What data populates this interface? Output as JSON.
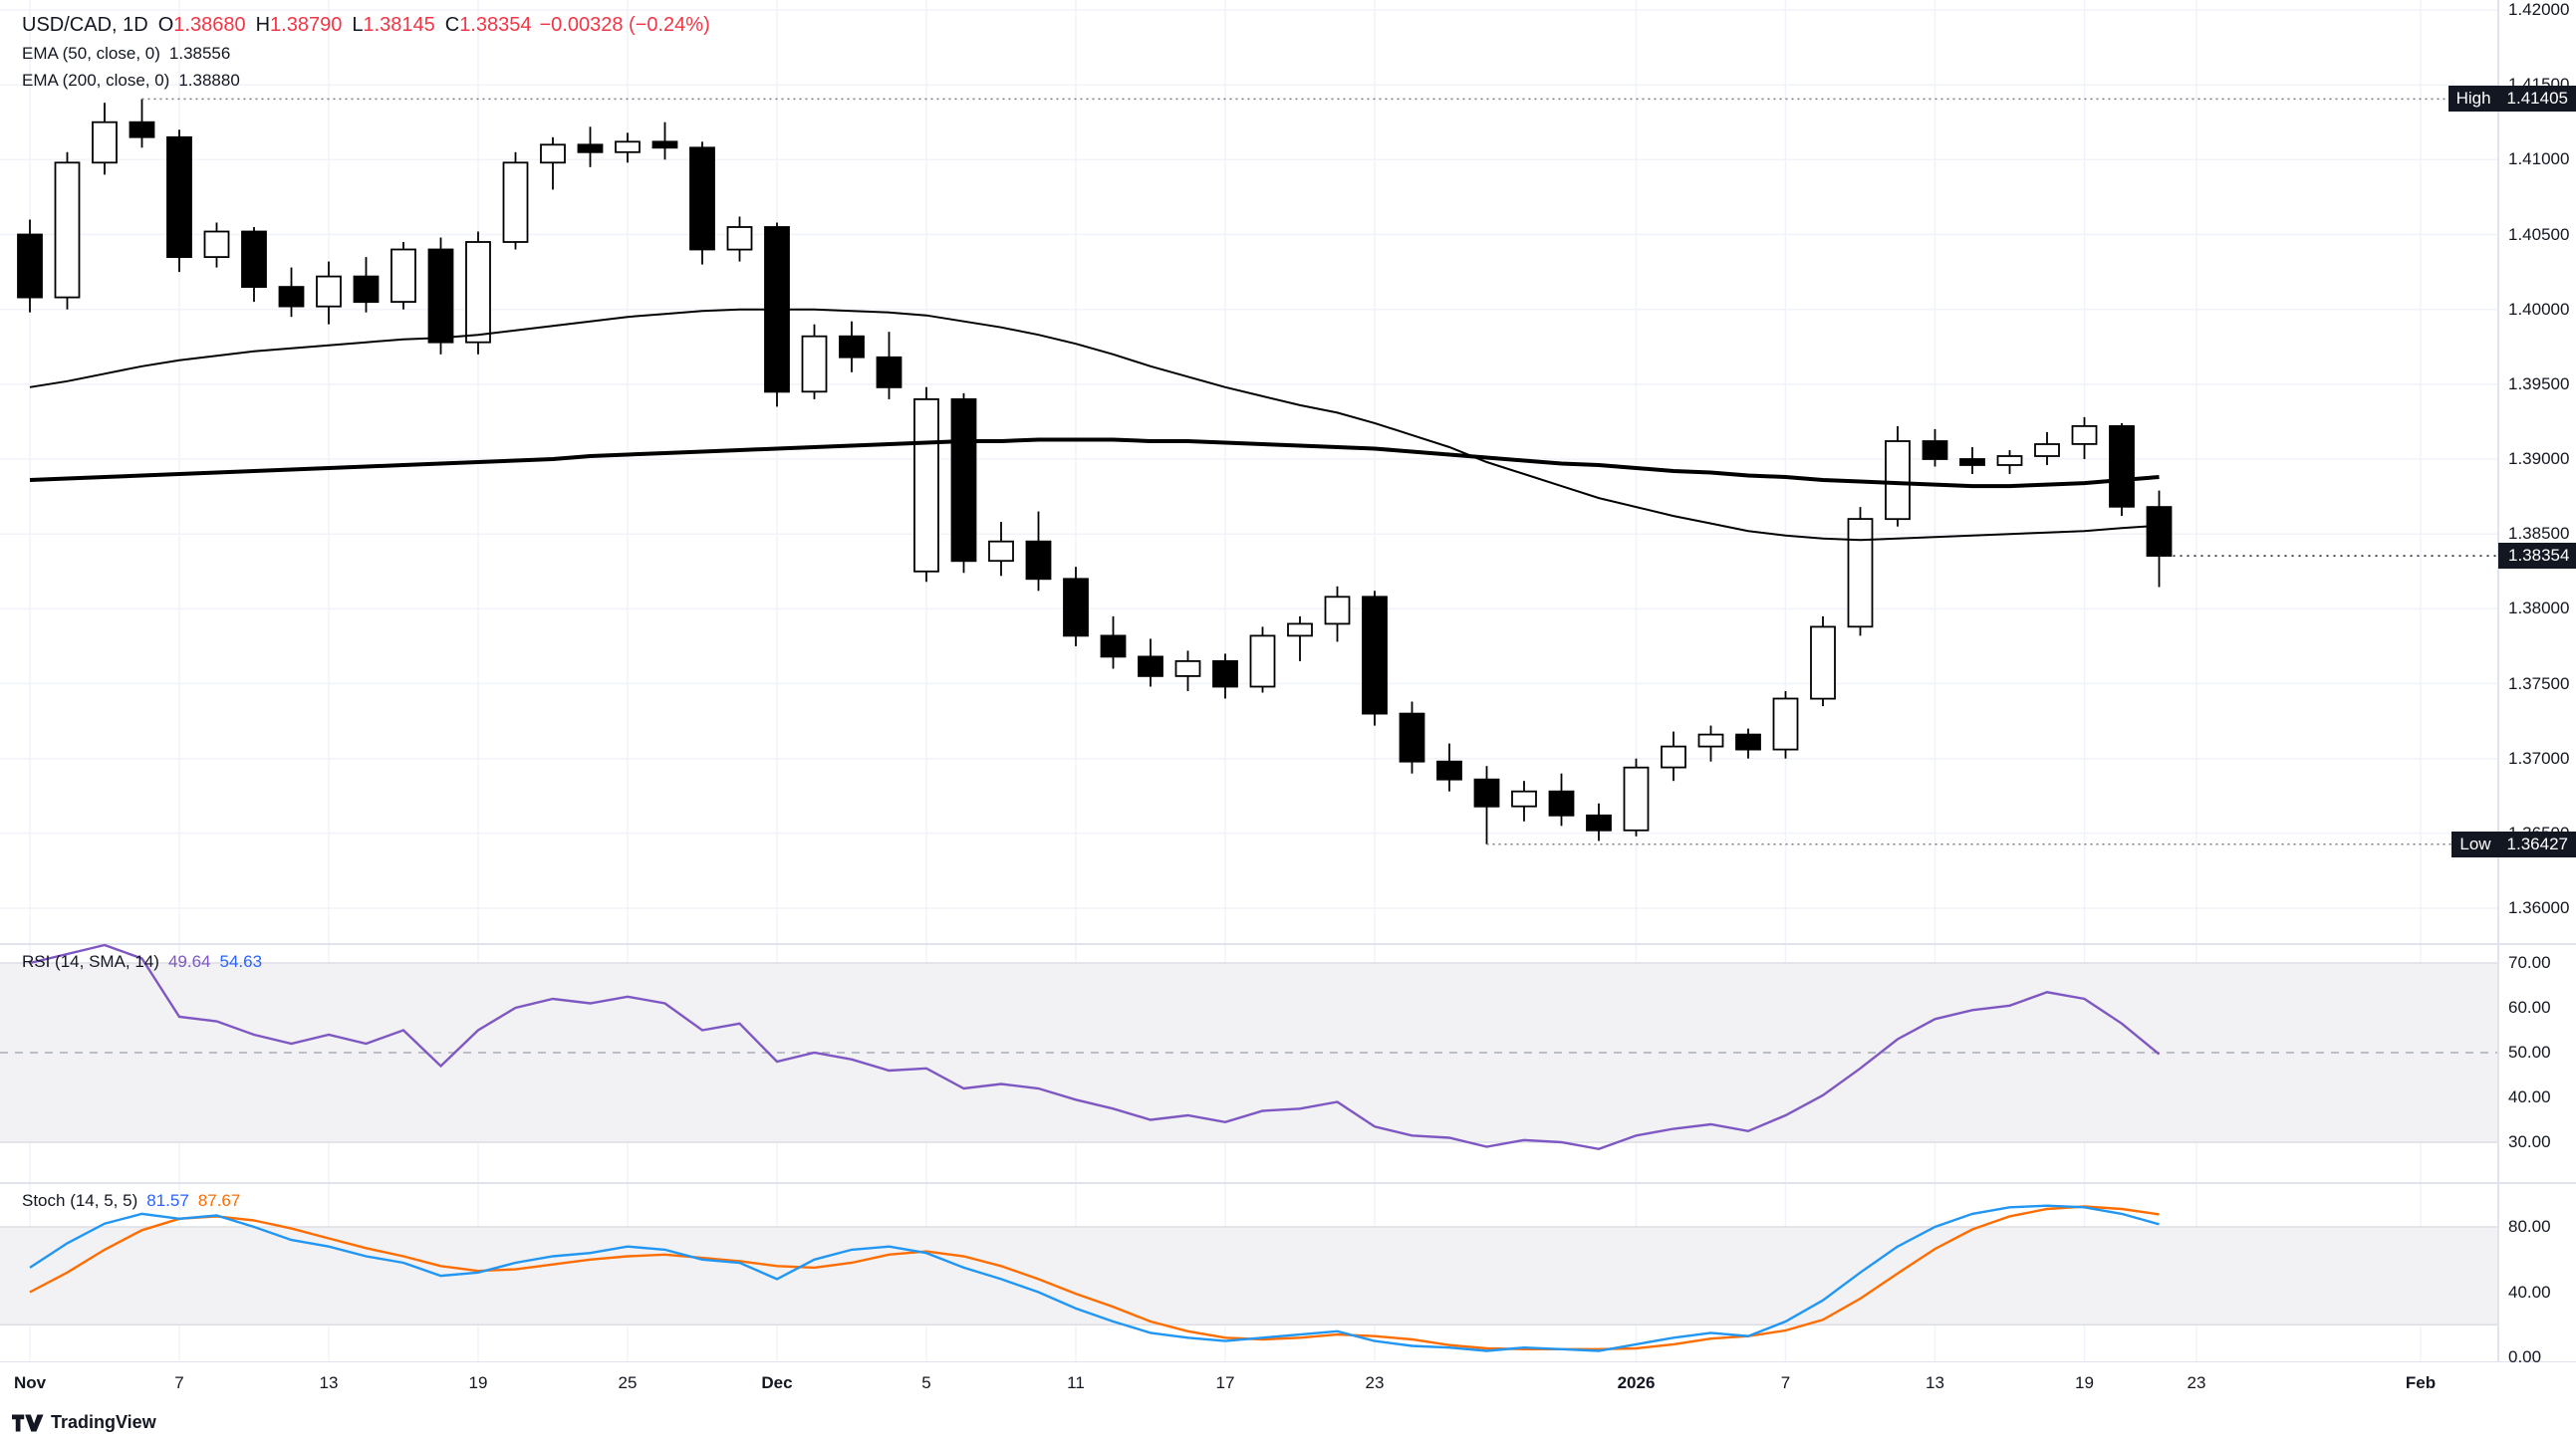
{
  "legend": {
    "symbol": "USD/CAD, 1D",
    "o_label": "O",
    "open": "1.38680",
    "h_label": "H",
    "high": "1.38790",
    "l_label": "L",
    "low": "1.38145",
    "c_label": "C",
    "close": "1.38354",
    "change": "−0.00328 (−0.24%)",
    "ema50_label": "EMA (50, close, 0)",
    "ema50_value": "1.38556",
    "ema200_label": "EMA (200, close, 0)",
    "ema200_value": "1.38880",
    "rsi_label": "RSI (14, SMA, 14)",
    "rsi_value": "49.64",
    "rsi_ma_value": "54.63",
    "stoch_label": "Stoch (14, 5, 5)",
    "stoch_k_value": "81.57",
    "stoch_d_value": "87.67"
  },
  "badges": {
    "high_label": "High",
    "high_value": "1.41405",
    "low_label": "Low",
    "low_value": "1.36427",
    "last_value": "1.38354"
  },
  "axes": {
    "price_ticks": [
      "1.42000",
      "1.41500",
      "1.41000",
      "1.40500",
      "1.40000",
      "1.39500",
      "1.39000",
      "1.38500",
      "1.38000",
      "1.37500",
      "1.37000",
      "1.36500",
      "1.36000"
    ],
    "rsi_ticks": [
      "70.00",
      "60.00",
      "50.00",
      "40.00",
      "30.00"
    ],
    "stoch_ticks": [
      "80.00",
      "40.00",
      "0.00"
    ],
    "time_ticks": [
      {
        "label": "Nov",
        "i": 0,
        "major": true
      },
      {
        "label": "7",
        "i": 4,
        "major": false
      },
      {
        "label": "13",
        "i": 8,
        "major": false
      },
      {
        "label": "19",
        "i": 12,
        "major": false
      },
      {
        "label": "25",
        "i": 16,
        "major": false
      },
      {
        "label": "Dec",
        "i": 20,
        "major": true
      },
      {
        "label": "5",
        "i": 24,
        "major": false
      },
      {
        "label": "11",
        "i": 28,
        "major": false
      },
      {
        "label": "17",
        "i": 32,
        "major": false
      },
      {
        "label": "23",
        "i": 36,
        "major": false
      },
      {
        "label": "2026",
        "i": 43,
        "major": true
      },
      {
        "label": "7",
        "i": 47,
        "major": false
      },
      {
        "label": "13",
        "i": 51,
        "major": false
      },
      {
        "label": "19",
        "i": 55,
        "major": false
      },
      {
        "label": "23",
        "i": 58,
        "major": false
      },
      {
        "label": "Feb",
        "i": 64,
        "major": true
      }
    ]
  },
  "footer": {
    "brand": "TradingView"
  },
  "colors": {
    "background": "#ffffff",
    "grid": "#f0f3fa",
    "candle_up": "#ffffff",
    "candle_down": "#000000",
    "candle_border": "#000000",
    "ema50": "#000000",
    "ema200": "#000000",
    "rsi_line": "#7E57C2",
    "rsi_ma": "#2962FF",
    "stoch_k": "#2196F3",
    "stoch_d": "#FF6D00",
    "band_fill": "#f2f2f5",
    "band_edge": "#dcdee5",
    "mid_dash": "#a8adb8",
    "divider": "#e0e3eb",
    "axis_text": "#131722",
    "badge_bg": "#131722",
    "badge_text": "#ffffff",
    "negative": "#F23645",
    "hl_dotted": "#787b86"
  },
  "chart_data": {
    "type": "candlestick",
    "title": "USD/CAD daily candlestick chart with EMA(50), EMA(200), RSI(14) and Stochastic(14,5,5)",
    "legend_position": "top-left",
    "grid": true,
    "price": {
      "ylim": [
        1.36,
        1.42
      ],
      "high_marker": 1.41405,
      "low_marker": 1.36427,
      "last_close": 1.38354,
      "candles_ohlc": [
        [
          1.405,
          1.406,
          1.3998,
          1.4008
        ],
        [
          1.4008,
          1.4105,
          1.4,
          1.4098
        ],
        [
          1.4098,
          1.4138,
          1.409,
          1.4125
        ],
        [
          1.4125,
          1.41405,
          1.4108,
          1.4115
        ],
        [
          1.4115,
          1.412,
          1.4025,
          1.4035
        ],
        [
          1.4035,
          1.4058,
          1.4028,
          1.4052
        ],
        [
          1.4052,
          1.4055,
          1.4005,
          1.4015
        ],
        [
          1.4015,
          1.4028,
          1.3995,
          1.4002
        ],
        [
          1.4002,
          1.4032,
          1.399,
          1.4022
        ],
        [
          1.4022,
          1.4035,
          1.3998,
          1.4005
        ],
        [
          1.4005,
          1.4045,
          1.4,
          1.404
        ],
        [
          1.404,
          1.4048,
          1.397,
          1.3978
        ],
        [
          1.3978,
          1.4052,
          1.397,
          1.4045
        ],
        [
          1.4045,
          1.4105,
          1.404,
          1.4098
        ],
        [
          1.4098,
          1.4115,
          1.408,
          1.411
        ],
        [
          1.411,
          1.4122,
          1.4095,
          1.4105
        ],
        [
          1.4105,
          1.4118,
          1.4098,
          1.4112
        ],
        [
          1.4112,
          1.4125,
          1.41,
          1.4108
        ],
        [
          1.4108,
          1.4112,
          1.403,
          1.404
        ],
        [
          1.404,
          1.4062,
          1.4032,
          1.4055
        ],
        [
          1.4055,
          1.4058,
          1.3935,
          1.3945
        ],
        [
          1.3945,
          1.399,
          1.394,
          1.3982
        ],
        [
          1.3982,
          1.3992,
          1.3958,
          1.3968
        ],
        [
          1.3968,
          1.3985,
          1.394,
          1.3948
        ],
        [
          1.3825,
          1.3948,
          1.3818,
          1.394
        ],
        [
          1.394,
          1.3944,
          1.3824,
          1.3832
        ],
        [
          1.3832,
          1.3858,
          1.3822,
          1.3845
        ],
        [
          1.3845,
          1.3865,
          1.3812,
          1.382
        ],
        [
          1.382,
          1.3828,
          1.3775,
          1.3782
        ],
        [
          1.3782,
          1.3795,
          1.376,
          1.3768
        ],
        [
          1.3768,
          1.378,
          1.3748,
          1.3755
        ],
        [
          1.3755,
          1.3772,
          1.3745,
          1.3765
        ],
        [
          1.3765,
          1.377,
          1.374,
          1.3748
        ],
        [
          1.3748,
          1.3788,
          1.3744,
          1.3782
        ],
        [
          1.3782,
          1.3795,
          1.3765,
          1.379
        ],
        [
          1.379,
          1.3815,
          1.3778,
          1.3808
        ],
        [
          1.3808,
          1.3812,
          1.3722,
          1.373
        ],
        [
          1.373,
          1.3738,
          1.369,
          1.3698
        ],
        [
          1.3698,
          1.371,
          1.3678,
          1.3686
        ],
        [
          1.3686,
          1.3695,
          1.36427,
          1.3668
        ],
        [
          1.3668,
          1.3685,
          1.3658,
          1.3678
        ],
        [
          1.3678,
          1.369,
          1.3655,
          1.3662
        ],
        [
          1.3662,
          1.367,
          1.3645,
          1.3652
        ],
        [
          1.3652,
          1.37,
          1.3648,
          1.3694
        ],
        [
          1.3694,
          1.3718,
          1.3685,
          1.3708
        ],
        [
          1.3708,
          1.3722,
          1.3698,
          1.3716
        ],
        [
          1.3716,
          1.372,
          1.37,
          1.3706
        ],
        [
          1.3706,
          1.3745,
          1.37,
          1.374
        ],
        [
          1.374,
          1.3795,
          1.3735,
          1.3788
        ],
        [
          1.3788,
          1.3868,
          1.3782,
          1.386
        ],
        [
          1.386,
          1.3922,
          1.3855,
          1.3912
        ],
        [
          1.3912,
          1.392,
          1.3895,
          1.39
        ],
        [
          1.39,
          1.3908,
          1.389,
          1.3896
        ],
        [
          1.3896,
          1.3906,
          1.389,
          1.3902
        ],
        [
          1.3902,
          1.3918,
          1.3896,
          1.391
        ],
        [
          1.391,
          1.3928,
          1.39,
          1.3922
        ],
        [
          1.3922,
          1.3924,
          1.3862,
          1.38682
        ],
        [
          1.3868,
          1.3879,
          1.38145,
          1.38354
        ]
      ]
    },
    "overlays": [
      {
        "name": "EMA 50",
        "current": 1.38556,
        "values": [
          1.3948,
          1.3952,
          1.3957,
          1.3962,
          1.3966,
          1.3969,
          1.3972,
          1.3974,
          1.3976,
          1.3978,
          1.398,
          1.3981,
          1.3983,
          1.3986,
          1.3989,
          1.3992,
          1.3995,
          1.3997,
          1.3999,
          1.4,
          1.4,
          1.4,
          1.3999,
          1.3998,
          1.3996,
          1.3992,
          1.3988,
          1.3983,
          1.3977,
          1.397,
          1.3962,
          1.3955,
          1.3948,
          1.3942,
          1.3936,
          1.3931,
          1.3924,
          1.3916,
          1.3908,
          1.3898,
          1.389,
          1.3882,
          1.3874,
          1.3868,
          1.3862,
          1.3857,
          1.3852,
          1.3849,
          1.3847,
          1.3846,
          1.3847,
          1.3848,
          1.3849,
          1.385,
          1.3851,
          1.3852,
          1.3854,
          1.38556
        ]
      },
      {
        "name": "EMA 200",
        "current": 1.3888,
        "values": [
          1.3886,
          1.3887,
          1.3888,
          1.3889,
          1.389,
          1.3891,
          1.3892,
          1.3893,
          1.3894,
          1.3895,
          1.3896,
          1.3897,
          1.3898,
          1.3899,
          1.39,
          1.3902,
          1.3903,
          1.3904,
          1.3905,
          1.3906,
          1.3907,
          1.3908,
          1.3909,
          1.391,
          1.3911,
          1.3912,
          1.3912,
          1.3913,
          1.3913,
          1.3913,
          1.3912,
          1.3912,
          1.3911,
          1.391,
          1.3909,
          1.3908,
          1.3907,
          1.3905,
          1.3903,
          1.3901,
          1.3899,
          1.3897,
          1.3896,
          1.3894,
          1.3892,
          1.3891,
          1.3889,
          1.3888,
          1.3886,
          1.3885,
          1.3884,
          1.3883,
          1.3882,
          1.3882,
          1.3883,
          1.3884,
          1.3886,
          1.3888
        ]
      }
    ],
    "rsi": {
      "levels": [
        30,
        50,
        70
      ],
      "current": 49.64,
      "ma_current": 54.63,
      "values": [
        70,
        72,
        74,
        71,
        58,
        57,
        54,
        52,
        54,
        52,
        55,
        47,
        55,
        60,
        62,
        61,
        62.5,
        61,
        55,
        56.5,
        48,
        50,
        48.5,
        46,
        46.5,
        42,
        43,
        42,
        39.5,
        37.5,
        35,
        36,
        34.5,
        37,
        37.5,
        39,
        33.5,
        31.5,
        31,
        29,
        30.5,
        30,
        28.5,
        31.5,
        33,
        34,
        32.5,
        36,
        40.5,
        46.5,
        53,
        57.5,
        59.5,
        60.5,
        63.5,
        62,
        56.5,
        49.64
      ]
    },
    "stoch": {
      "band": [
        20,
        80
      ],
      "k_current": 81.57,
      "d_current": 87.67,
      "k": [
        55,
        70,
        82,
        88,
        85,
        87,
        80,
        72,
        68,
        62,
        58,
        50,
        52,
        58,
        62,
        64,
        68,
        66,
        60,
        58,
        48,
        60,
        66,
        68,
        64,
        55,
        48,
        40,
        30,
        22,
        15,
        12,
        10,
        12,
        14,
        16,
        10,
        7,
        6,
        4,
        6,
        5,
        4,
        8,
        12,
        15,
        13,
        22,
        35,
        52,
        68,
        80,
        88,
        92,
        93,
        92,
        88,
        81.57
      ],
      "d": [
        40,
        52,
        66,
        78,
        85,
        86.5,
        84,
        79,
        73,
        67,
        62,
        56,
        53,
        54,
        57,
        60,
        62,
        63,
        61,
        59,
        56,
        55,
        58,
        63,
        65,
        62,
        56,
        48,
        39,
        31,
        22,
        16,
        12,
        11,
        12,
        14,
        13,
        11,
        7.5,
        5.5,
        5,
        5,
        5,
        5.5,
        8,
        11.5,
        13,
        16.5,
        23,
        36,
        51.5,
        66.5,
        78.5,
        86.5,
        91,
        92.5,
        91,
        87.67
      ]
    }
  }
}
